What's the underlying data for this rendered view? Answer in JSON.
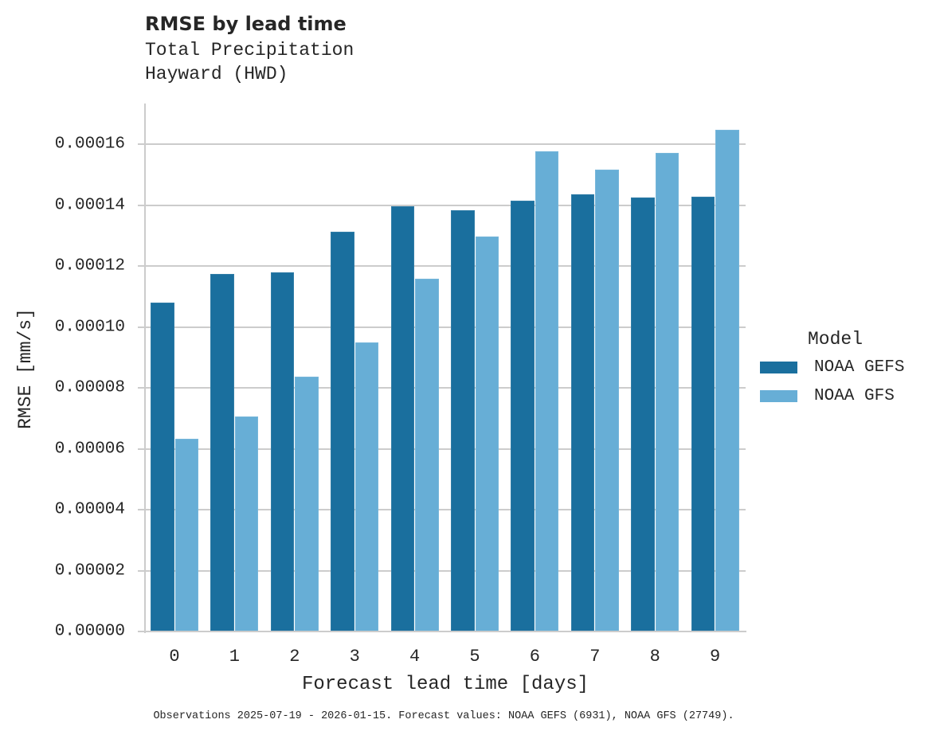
{
  "header": {
    "title": "RMSE by lead time",
    "subtitle_line1": "Total Precipitation",
    "subtitle_line2": "Hayward (HWD)"
  },
  "footnote": "Observations 2025-07-19 - 2026-01-15. Forecast values: NOAA GEFS (6931), NOAA GFS (27749).",
  "colors": {
    "gefs": "#1a6f9e",
    "gfs": "#67aed6",
    "grid": "#cccccc",
    "text": "#262626"
  },
  "chart_data": {
    "type": "bar",
    "title": "RMSE by lead time",
    "subtitle": [
      "Total Precipitation",
      "Hayward (HWD)"
    ],
    "xlabel": "Forecast lead time [days]",
    "ylabel": "RMSE [mm/s]",
    "ylim": [
      0,
      0.000173
    ],
    "yticks": [
      "0.00000",
      "0.00002",
      "0.00004",
      "0.00006",
      "0.00008",
      "0.00010",
      "0.00012",
      "0.00014",
      "0.00016"
    ],
    "grid": true,
    "legend_position": "right",
    "legend_title": "Model",
    "categories": [
      "0",
      "1",
      "2",
      "3",
      "4",
      "5",
      "6",
      "7",
      "8",
      "9"
    ],
    "series": [
      {
        "name": "NOAA GEFS",
        "color": "#1a6f9e",
        "values": [
          0.000108,
          0.0001174,
          0.0001179,
          0.0001312,
          0.0001396,
          0.0001383,
          0.0001414,
          0.0001435,
          0.0001425,
          0.0001427
        ]
      },
      {
        "name": "NOAA GFS",
        "color": "#67aed6",
        "values": [
          6.33e-05,
          7.06e-05,
          8.37e-05,
          9.49e-05,
          0.0001158,
          0.0001297,
          0.0001576,
          0.0001516,
          0.0001571,
          0.0001647
        ]
      }
    ]
  }
}
